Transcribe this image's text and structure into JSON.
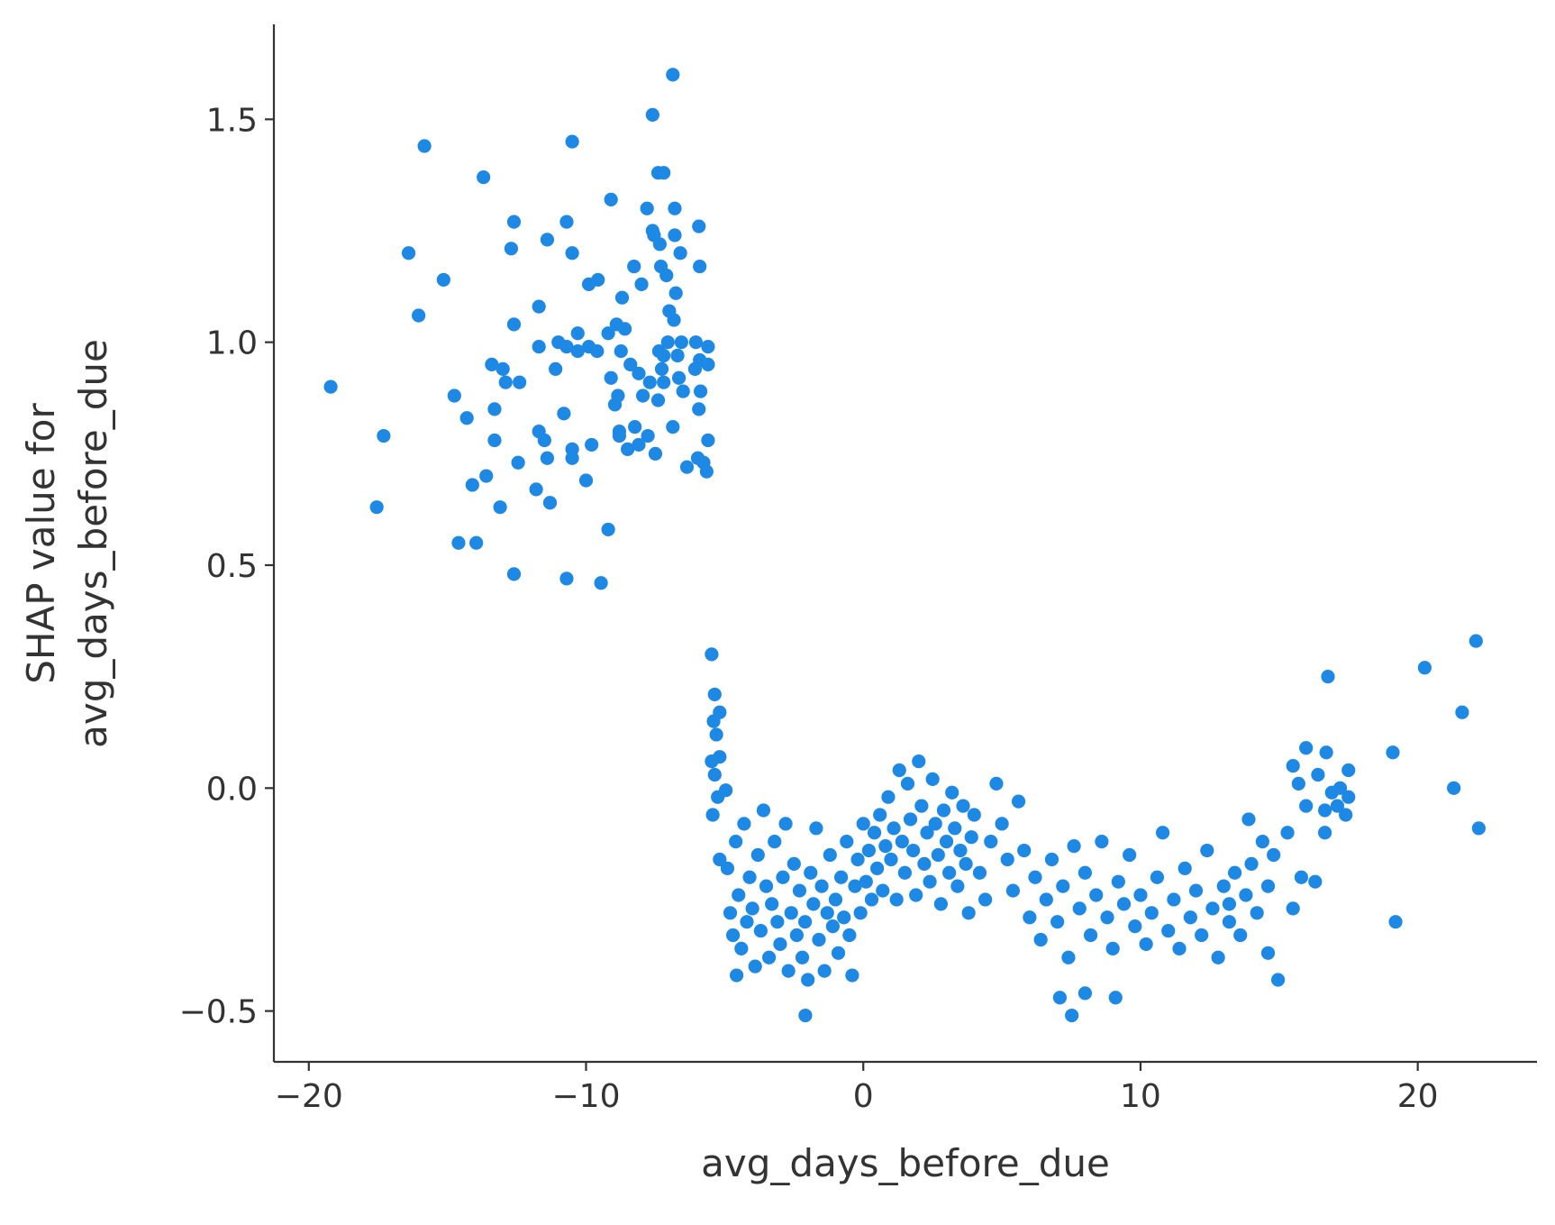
{
  "chart_data": {
    "type": "scatter",
    "xlabel": "avg_days_before_due",
    "ylabel": [
      "SHAP value for",
      "avg_days_before_due"
    ],
    "xlim": [
      -21.26,
      24.3
    ],
    "ylim": [
      -0.614,
      1.713
    ],
    "xticks": [
      {
        "value": -20,
        "label": "−20"
      },
      {
        "value": -10,
        "label": "−10"
      },
      0,
      10,
      20
    ],
    "yticks": [
      {
        "value": -0.5,
        "label": "−0.5"
      },
      {
        "value": 0,
        "label": "0.0"
      },
      0.5,
      {
        "value": 1,
        "label": "1.0"
      },
      1.5
    ],
    "grid": false,
    "series": [
      {
        "color": "#1e88e5",
        "x": [
          -19.21,
          -17.3,
          -17.55,
          -16.4,
          -16.04,
          -15.83,
          -15.14,
          -14.75,
          -14.6,
          -14.3,
          -14.1,
          -13.96,
          -13.7,
          -13.6,
          -13.4,
          -13.3,
          -13.3,
          -13.1,
          -13.0,
          -12.9,
          -12.7,
          -12.6,
          -12.6,
          -12.6,
          -12.45,
          -12.4,
          -11.8,
          -11.7,
          -11.7,
          -11.7,
          -11.5,
          -11.4,
          -11.4,
          -11.3,
          -11.1,
          -11.0,
          -10.8,
          -10.7,
          -10.7,
          -10.7,
          -10.5,
          -10.5,
          -10.5,
          -10.5,
          -10.3,
          -10.3,
          -10.0,
          -9.9,
          -9.9,
          -9.8,
          -9.6,
          -9.57,
          -9.46,
          -9.2,
          -9.2,
          -9.1,
          -9.1,
          -8.96,
          -8.9,
          -8.85,
          -8.8,
          -8.8,
          -8.74,
          -8.7,
          -8.6,
          -8.5,
          -8.4,
          -8.27,
          -8.24,
          -8.1,
          -8.1,
          -8.0,
          -7.95,
          -7.8,
          -7.77,
          -7.7,
          -7.6,
          -7.6,
          -7.55,
          -7.5,
          -7.4,
          -7.4,
          -7.34,
          -7.3,
          -7.37,
          -7.27,
          -7.2,
          -7.2,
          -7.2,
          -7.1,
          -7.05,
          -7.0,
          -6.87,
          -6.87,
          -6.83,
          -6.8,
          -6.8,
          -6.76,
          -6.7,
          -6.65,
          -6.6,
          -6.56,
          -6.5,
          -6.36,
          -6.07,
          -6.04,
          -5.97,
          -5.9,
          -5.93,
          -5.93,
          -5.87,
          -5.76,
          -5.65,
          -5.6,
          -5.6,
          -5.6,
          -5.9,
          -5.47,
          -5.36,
          -5.18,
          -5.4,
          -5.3,
          -5.47,
          -5.18,
          -5.36,
          -5.25,
          -5.43,
          -4.96,
          -5.18,
          -2.09,
          7.52,
          7.09,
          9.1,
          8.0,
          14.96,
          -4.57,
          14.6,
          19.2,
          16.76,
          20.25,
          22.1,
          21.6,
          21.3,
          22.2,
          19.1,
          15.97,
          16.7,
          15.5,
          17.5,
          17.2,
          16.4,
          15.7,
          16.9,
          17.5,
          17.1,
          15.97,
          16.65,
          17.4,
          15.3,
          16.65,
          15.8,
          16.3,
          15.5,
          13.9,
          13.2,
          -4.9,
          -4.8,
          -4.7,
          -4.6,
          -4.5,
          -4.4,
          -4.3,
          -4.2,
          -4.1,
          -4.0,
          -3.9,
          -3.8,
          -3.7,
          -3.6,
          -3.5,
          -3.4,
          -3.3,
          -3.2,
          -3.1,
          -3.0,
          -2.9,
          -2.8,
          -2.7,
          -2.6,
          -2.5,
          -2.4,
          -2.3,
          -2.2,
          -2.1,
          -2.0,
          -1.9,
          -1.8,
          -1.7,
          -1.6,
          -1.5,
          -1.4,
          -1.3,
          -1.2,
          -1.1,
          -1.0,
          -0.9,
          -0.8,
          -0.7,
          -0.6,
          -0.5,
          -0.4,
          -0.3,
          -0.2,
          -0.1,
          0.0,
          0.1,
          0.2,
          0.3,
          0.4,
          0.5,
          0.6,
          0.7,
          0.8,
          0.9,
          1.0,
          1.1,
          1.2,
          1.3,
          1.4,
          1.5,
          1.6,
          1.7,
          1.8,
          1.9,
          2.0,
          2.1,
          2.2,
          2.3,
          2.4,
          2.5,
          2.6,
          2.7,
          2.8,
          2.9,
          3.0,
          3.1,
          3.2,
          3.3,
          3.4,
          3.5,
          3.6,
          3.7,
          3.8,
          3.9,
          4.0,
          4.2,
          4.4,
          4.6,
          4.8,
          5.0,
          5.2,
          5.4,
          5.6,
          5.8,
          6.0,
          6.2,
          6.4,
          6.6,
          6.8,
          7.0,
          7.2,
          7.4,
          7.6,
          7.8,
          8.0,
          8.2,
          8.4,
          8.6,
          8.8,
          9.0,
          9.2,
          9.4,
          9.6,
          9.8,
          10.0,
          10.2,
          10.4,
          10.6,
          10.8,
          11.0,
          11.2,
          11.4,
          11.6,
          11.8,
          12.0,
          12.2,
          12.4,
          12.6,
          12.8,
          13.0,
          13.2,
          13.4,
          13.6,
          13.8,
          14.0,
          14.2,
          14.4,
          14.6,
          14.8
        ],
        "values": [
          0.9,
          0.79,
          0.63,
          1.2,
          1.06,
          1.44,
          1.14,
          0.88,
          0.55,
          0.83,
          0.68,
          0.55,
          1.37,
          0.7,
          0.95,
          0.78,
          0.85,
          0.63,
          0.94,
          0.91,
          1.21,
          1.27,
          1.04,
          0.48,
          0.73,
          0.91,
          0.67,
          0.8,
          1.08,
          0.99,
          0.78,
          1.23,
          0.74,
          0.64,
          0.94,
          1.0,
          0.84,
          0.99,
          1.27,
          0.47,
          1.45,
          1.2,
          0.76,
          0.74,
          1.02,
          0.98,
          0.69,
          1.13,
          0.99,
          0.77,
          0.98,
          1.14,
          0.46,
          0.58,
          1.02,
          1.32,
          0.92,
          0.86,
          1.04,
          0.88,
          0.8,
          0.79,
          0.98,
          1.1,
          1.03,
          0.76,
          0.95,
          1.17,
          0.81,
          0.93,
          0.77,
          1.13,
          0.88,
          1.3,
          0.79,
          0.91,
          1.25,
          1.51,
          1.24,
          0.75,
          0.87,
          1.38,
          1.22,
          1.17,
          0.98,
          0.94,
          0.97,
          1.38,
          0.91,
          1.15,
          1.0,
          1.07,
          1.6,
          0.81,
          1.05,
          1.24,
          1.3,
          1.11,
          0.97,
          0.92,
          1.2,
          1.0,
          0.89,
          0.72,
          0.94,
          1.0,
          0.74,
          1.17,
          1.26,
          0.85,
          0.89,
          0.73,
          0.71,
          0.99,
          0.95,
          0.78,
          0.96,
          0.3,
          0.21,
          0.17,
          0.15,
          0.12,
          0.06,
          0.07,
          0.03,
          -0.02,
          -0.06,
          -0.005,
          -0.16,
          -0.51,
          -0.51,
          -0.47,
          -0.47,
          -0.46,
          -0.43,
          -0.42,
          -0.37,
          -0.3,
          0.25,
          0.27,
          0.33,
          0.17,
          0.0,
          -0.09,
          0.08,
          0.09,
          0.08,
          0.05,
          0.04,
          0.0,
          0.03,
          0.01,
          -0.01,
          -0.02,
          -0.04,
          -0.04,
          -0.05,
          -0.06,
          -0.1,
          -0.1,
          -0.2,
          -0.21,
          -0.27,
          -0.07,
          -0.26,
          -0.18,
          -0.28,
          -0.33,
          -0.12,
          -0.24,
          -0.36,
          -0.08,
          -0.3,
          -0.2,
          -0.27,
          -0.4,
          -0.15,
          -0.32,
          -0.05,
          -0.22,
          -0.38,
          -0.26,
          -0.12,
          -0.3,
          -0.35,
          -0.2,
          -0.08,
          -0.41,
          -0.28,
          -0.17,
          -0.33,
          -0.23,
          -0.38,
          -0.3,
          -0.43,
          -0.19,
          -0.26,
          -0.09,
          -0.34,
          -0.22,
          -0.41,
          -0.28,
          -0.15,
          -0.31,
          -0.25,
          -0.37,
          -0.2,
          -0.29,
          -0.12,
          -0.33,
          -0.42,
          -0.22,
          -0.16,
          -0.28,
          -0.08,
          -0.21,
          -0.14,
          -0.25,
          -0.1,
          -0.18,
          -0.06,
          -0.23,
          -0.13,
          -0.02,
          -0.16,
          -0.09,
          -0.25,
          0.04,
          -0.12,
          -0.19,
          0.01,
          -0.07,
          -0.14,
          -0.24,
          0.06,
          -0.04,
          -0.17,
          -0.1,
          -0.21,
          0.02,
          -0.08,
          -0.15,
          -0.26,
          -0.05,
          -0.12,
          -0.19,
          -0.01,
          -0.09,
          -0.22,
          -0.14,
          -0.04,
          -0.17,
          -0.28,
          -0.11,
          -0.06,
          -0.19,
          -0.25,
          -0.12,
          0.01,
          -0.08,
          -0.16,
          -0.23,
          -0.03,
          -0.14,
          -0.29,
          -0.2,
          -0.34,
          -0.25,
          -0.16,
          -0.3,
          -0.22,
          -0.38,
          -0.13,
          -0.27,
          -0.19,
          -0.33,
          -0.24,
          -0.12,
          -0.29,
          -0.36,
          -0.21,
          -0.26,
          -0.15,
          -0.31,
          -0.24,
          -0.35,
          -0.28,
          -0.2,
          -0.1,
          -0.32,
          -0.25,
          -0.36,
          -0.18,
          -0.29,
          -0.23,
          -0.33,
          -0.14,
          -0.27,
          -0.38,
          -0.22,
          -0.3,
          -0.19,
          -0.33,
          -0.24,
          -0.17,
          -0.28,
          -0.12,
          -0.22,
          -0.15
        ]
      }
    ]
  }
}
